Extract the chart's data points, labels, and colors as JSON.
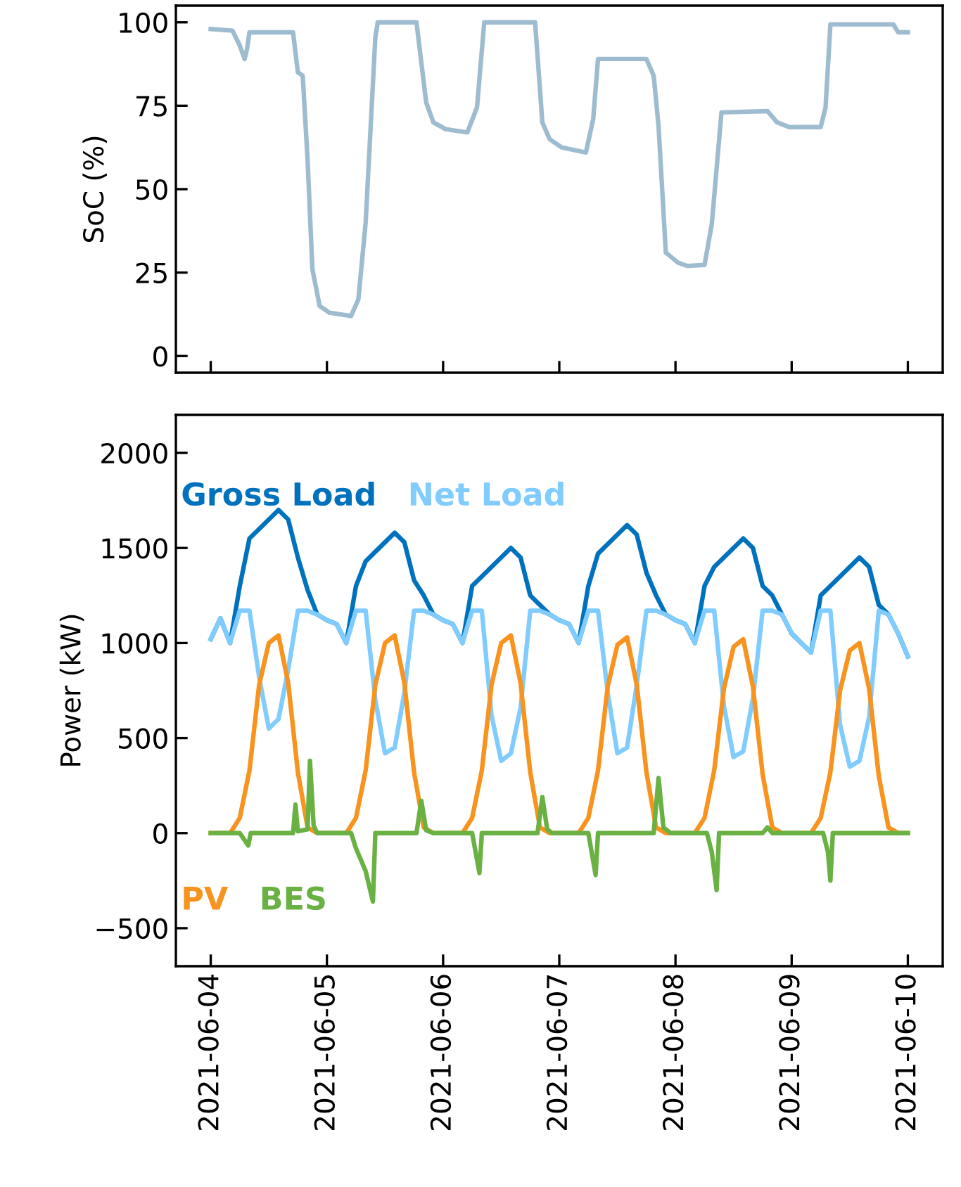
{
  "chart_data": [
    {
      "type": "line",
      "ylabel": "SoC (%)",
      "ylim": [
        -5,
        105
      ],
      "yticks": [
        0,
        25,
        50,
        75,
        100
      ],
      "xlim": [
        "2021-06-03T16:48",
        "2021-06-10T07:12"
      ],
      "xticks": [
        {
          "value": "2021-06-04",
          "label": null
        },
        {
          "value": "2021-06-05",
          "label": null
        },
        {
          "value": "2021-06-06",
          "label": null
        },
        {
          "value": "2021-06-07",
          "label": null
        },
        {
          "value": "2021-06-08",
          "label": null
        },
        {
          "value": "2021-06-09",
          "label": null
        },
        {
          "value": "2021-06-10",
          "label": null
        }
      ],
      "tick_labels": "y",
      "grid": false,
      "marker": "none",
      "line_style": "solid",
      "series": [
        {
          "color": "#9dbccf",
          "x": [
            "2021-06-04T00:00",
            "2021-06-04T04:30",
            "2021-06-04T06:00",
            "2021-06-04T07:00",
            "2021-06-04T07:30",
            "2021-06-04T08:00",
            "2021-06-04T17:00",
            "2021-06-04T18:00",
            "2021-06-04T19:00",
            "2021-06-04T20:00",
            "2021-06-04T21:00",
            "2021-06-04T22:30",
            "2021-06-05T00:30",
            "2021-06-05T05:00",
            "2021-06-05T06:30",
            "2021-06-05T08:00",
            "2021-06-05T10:00",
            "2021-06-05T10:30",
            "2021-06-05T18:30",
            "2021-06-05T20:30",
            "2021-06-05T22:00",
            "2021-06-06T00:30",
            "2021-06-06T05:00",
            "2021-06-06T07:00",
            "2021-06-06T08:30",
            "2021-06-06T19:00",
            "2021-06-06T20:30",
            "2021-06-06T22:00",
            "2021-06-07T00:30",
            "2021-06-07T05:30",
            "2021-06-07T07:00",
            "2021-06-07T08:00",
            "2021-06-07T18:00",
            "2021-06-07T19:30",
            "2021-06-07T20:30",
            "2021-06-07T22:00",
            "2021-06-08T00:30",
            "2021-06-08T02:30",
            "2021-06-08T06:00",
            "2021-06-08T07:30",
            "2021-06-08T09:30",
            "2021-06-08T19:00",
            "2021-06-08T21:00",
            "2021-06-08T23:30",
            "2021-06-09T06:00",
            "2021-06-09T07:00",
            "2021-06-09T08:00",
            "2021-06-09T21:00",
            "2021-06-09T22:00",
            "2021-06-10T00:00"
          ],
          "values": [
            98,
            97.5,
            93,
            89,
            92,
            97,
            97,
            85,
            84,
            59,
            26,
            15,
            13,
            12,
            17,
            40,
            95.5,
            100,
            100,
            76,
            70,
            68,
            67,
            74.5,
            100,
            100,
            70,
            65,
            62.5,
            61,
            71,
            89,
            89,
            84,
            69,
            31,
            28,
            27,
            27.3,
            39.5,
            73,
            73.4,
            70,
            68.6,
            68.6,
            74.5,
            99.4,
            99.4,
            97,
            97
          ]
        }
      ]
    },
    {
      "type": "line",
      "ylabel": "Power (kW)",
      "ylim": [
        -700,
        2200
      ],
      "yticks": [
        -500,
        0,
        500,
        1000,
        1500,
        2000
      ],
      "xlim": [
        "2021-06-03T16:48",
        "2021-06-10T07:12"
      ],
      "xticks": [
        "2021-06-04",
        "2021-06-05",
        "2021-06-06",
        "2021-06-07",
        "2021-06-08",
        "2021-06-09",
        "2021-06-10"
      ],
      "grid": false,
      "marker": "none",
      "line_style": "solid",
      "legend": "left",
      "x": [
        "2021-06-04T00:00",
        "2021-06-04T02:00",
        "2021-06-04T04:00",
        "2021-06-04T06:00",
        "2021-06-04T08:00",
        "2021-06-04T10:00",
        "2021-06-04T12:00",
        "2021-06-04T14:00",
        "2021-06-04T16:00",
        "2021-06-04T18:00",
        "2021-06-04T20:00",
        "2021-06-04T22:00",
        "2021-06-05T00:00",
        "2021-06-05T02:00",
        "2021-06-05T04:00",
        "2021-06-05T06:00",
        "2021-06-05T08:00",
        "2021-06-05T10:00",
        "2021-06-05T12:00",
        "2021-06-05T14:00",
        "2021-06-05T16:00",
        "2021-06-05T18:00",
        "2021-06-05T20:00",
        "2021-06-05T22:00",
        "2021-06-06T00:00",
        "2021-06-06T02:00",
        "2021-06-06T04:00",
        "2021-06-06T06:00",
        "2021-06-06T08:00",
        "2021-06-06T10:00",
        "2021-06-06T12:00",
        "2021-06-06T14:00",
        "2021-06-06T16:00",
        "2021-06-06T18:00",
        "2021-06-06T20:00",
        "2021-06-06T22:00",
        "2021-06-07T00:00",
        "2021-06-07T02:00",
        "2021-06-07T04:00",
        "2021-06-07T06:00",
        "2021-06-07T08:00",
        "2021-06-07T10:00",
        "2021-06-07T12:00",
        "2021-06-07T14:00",
        "2021-06-07T16:00",
        "2021-06-07T18:00",
        "2021-06-07T20:00",
        "2021-06-07T22:00",
        "2021-06-08T00:00",
        "2021-06-08T02:00",
        "2021-06-08T04:00",
        "2021-06-08T06:00",
        "2021-06-08T08:00",
        "2021-06-08T10:00",
        "2021-06-08T12:00",
        "2021-06-08T14:00",
        "2021-06-08T16:00",
        "2021-06-08T18:00",
        "2021-06-08T20:00",
        "2021-06-08T22:00",
        "2021-06-09T00:00",
        "2021-06-09T02:00",
        "2021-06-09T04:00",
        "2021-06-09T06:00",
        "2021-06-09T08:00",
        "2021-06-09T10:00",
        "2021-06-09T12:00",
        "2021-06-09T14:00",
        "2021-06-09T16:00",
        "2021-06-09T18:00",
        "2021-06-09T20:00",
        "2021-06-09T22:00",
        "2021-06-10T00:00"
      ],
      "series": [
        {
          "name": "Gross Load",
          "color": "#0072bd",
          "values": [
            1020,
            1130,
            1000,
            1300,
            1550,
            1600,
            1650,
            1700,
            1650,
            1450,
            1280,
            1150,
            1120,
            1100,
            1000,
            1300,
            1430,
            1480,
            1530,
            1580,
            1530,
            1330,
            1250,
            1150,
            1120,
            1100,
            1000,
            1300,
            1350,
            1400,
            1450,
            1500,
            1450,
            1250,
            1200,
            1150,
            1120,
            1100,
            1000,
            1300,
            1470,
            1520,
            1570,
            1620,
            1570,
            1370,
            1250,
            1150,
            1120,
            1100,
            1000,
            1300,
            1400,
            1450,
            1500,
            1550,
            1500,
            1300,
            1250,
            1150,
            1050,
            1000,
            950,
            1250,
            1300,
            1350,
            1400,
            1450,
            1400,
            1200,
            1150,
            1050,
            930
          ]
        },
        {
          "name": "Net Load",
          "color": "#80ccff",
          "values": [
            1020,
            1130,
            1000,
            1170,
            1170,
            820,
            550,
            600,
            860,
            1170,
            1170,
            1150,
            1120,
            1100,
            1000,
            1170,
            1170,
            700,
            420,
            450,
            740,
            1170,
            1170,
            1150,
            1120,
            1100,
            1000,
            1170,
            1170,
            620,
            380,
            420,
            660,
            1170,
            1170,
            1150,
            1120,
            1100,
            1000,
            1170,
            1170,
            740,
            420,
            450,
            780,
            1170,
            1170,
            1150,
            1120,
            1100,
            1000,
            1170,
            1170,
            670,
            400,
            430,
            710,
            1170,
            1170,
            1150,
            1050,
            1000,
            950,
            1170,
            1170,
            570,
            350,
            380,
            610,
            1170,
            1150,
            1050,
            930
          ]
        },
        {
          "name": "PV",
          "color": "#f7931e",
          "values": [
            0,
            0,
            0,
            80,
            330,
            780,
            1000,
            1040,
            790,
            320,
            30,
            0,
            0,
            0,
            0,
            80,
            330,
            780,
            1000,
            1040,
            790,
            320,
            30,
            0,
            0,
            0,
            0,
            80,
            330,
            780,
            1000,
            1040,
            790,
            320,
            30,
            0,
            0,
            0,
            0,
            80,
            330,
            770,
            990,
            1030,
            780,
            320,
            30,
            0,
            0,
            0,
            0,
            80,
            330,
            760,
            980,
            1020,
            770,
            310,
            30,
            0,
            0,
            0,
            0,
            80,
            320,
            750,
            960,
            1000,
            760,
            300,
            30,
            0,
            0
          ]
        },
        {
          "name": "BES",
          "color": "#6ab143",
          "x": [
            "2021-06-04T00:00",
            "2021-06-04T06:00",
            "2021-06-04T07:45",
            "2021-06-04T08:15",
            "2021-06-04T17:00",
            "2021-06-04T17:30",
            "2021-06-04T18:00",
            "2021-06-04T20:00",
            "2021-06-04T20:30",
            "2021-06-04T21:15",
            "2021-06-04T22:00",
            "2021-06-05T05:00",
            "2021-06-05T06:00",
            "2021-06-05T08:00",
            "2021-06-05T09:30",
            "2021-06-05T10:00",
            "2021-06-05T18:30",
            "2021-06-05T19:30",
            "2021-06-05T20:30",
            "2021-06-05T22:00",
            "2021-06-06T06:00",
            "2021-06-06T07:30",
            "2021-06-06T08:00",
            "2021-06-06T19:30",
            "2021-06-06T20:30",
            "2021-06-06T21:30",
            "2021-06-06T22:30",
            "2021-06-07T06:00",
            "2021-06-07T07:30",
            "2021-06-07T08:00",
            "2021-06-07T19:30",
            "2021-06-07T20:30",
            "2021-06-07T21:30",
            "2021-06-07T23:00",
            "2021-06-08T06:30",
            "2021-06-08T07:30",
            "2021-06-08T08:30",
            "2021-06-08T09:00",
            "2021-06-08T18:00",
            "2021-06-08T19:00",
            "2021-06-08T20:00",
            "2021-06-09T06:30",
            "2021-06-09T07:30",
            "2021-06-09T08:00",
            "2021-06-09T08:30",
            "2021-06-10T00:00"
          ],
          "values": [
            0,
            0,
            -65,
            0,
            0,
            150,
            10,
            20,
            380,
            40,
            0,
            0,
            -80,
            -200,
            -360,
            0,
            0,
            170,
            15,
            0,
            0,
            -210,
            0,
            0,
            190,
            20,
            0,
            0,
            -220,
            0,
            0,
            290,
            30,
            0,
            0,
            -100,
            -300,
            0,
            0,
            30,
            0,
            0,
            -100,
            -250,
            0,
            0
          ]
        }
      ]
    }
  ]
}
